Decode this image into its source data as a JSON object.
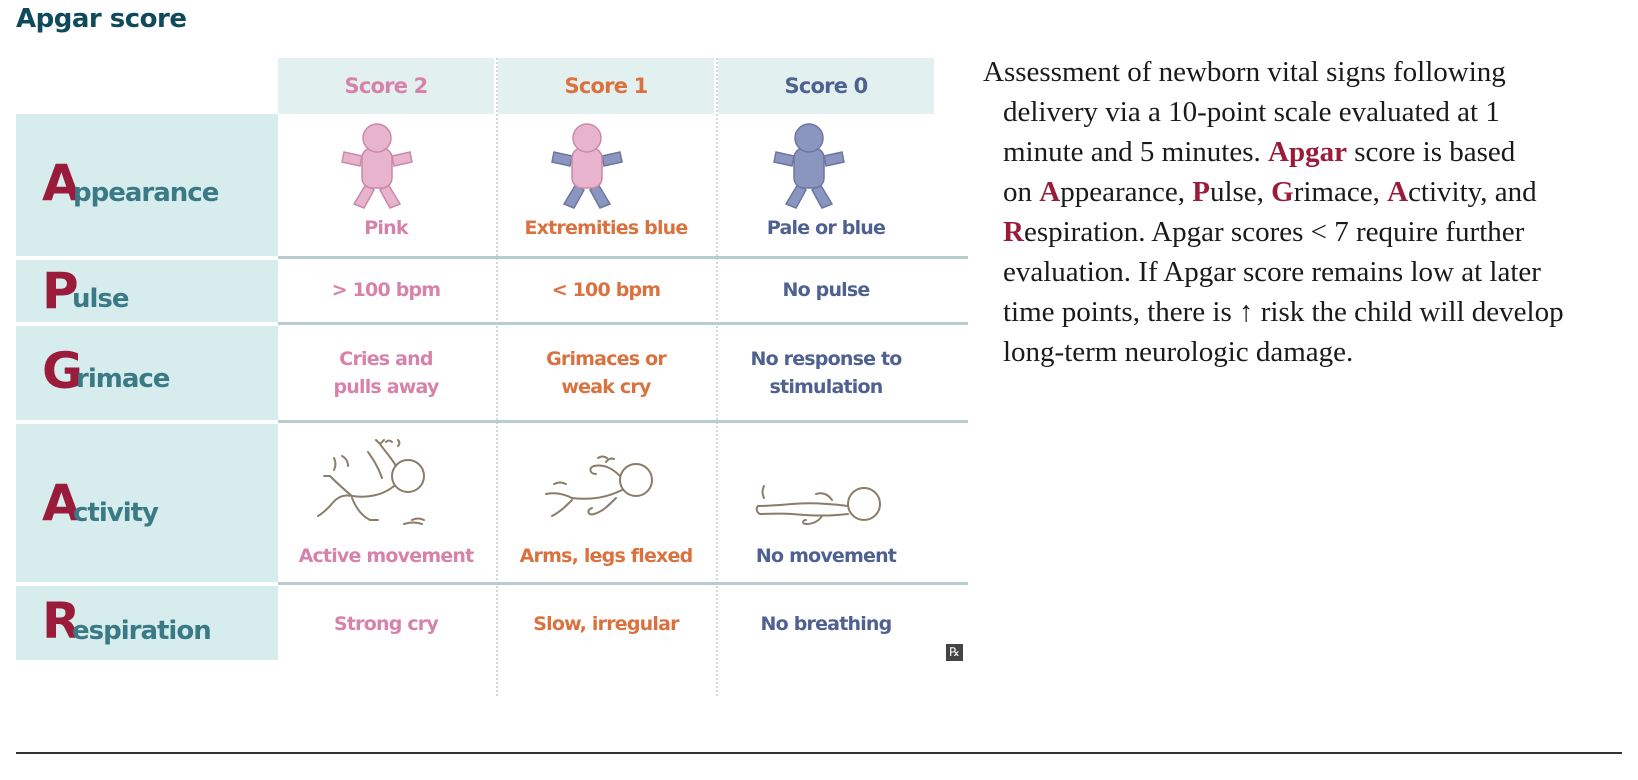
{
  "title": "Apgar score",
  "columns": [
    {
      "label": "Score 2",
      "color": "#d782ab"
    },
    {
      "label": "Score 1",
      "color": "#d9723f"
    },
    {
      "label": "Score 0",
      "color": "#4f6190"
    }
  ],
  "rows": [
    {
      "letter": "A",
      "rest": "ppearance",
      "cells": [
        "Pink",
        "Extremities blue",
        "Pale or blue"
      ]
    },
    {
      "letter": "P",
      "rest": "ulse",
      "cells": [
        "> 100 bpm",
        "< 100 bpm",
        "No pulse"
      ]
    },
    {
      "letter": "G",
      "rest": "rimace",
      "cells": [
        [
          "Cries and",
          "pulls away"
        ],
        [
          "Grimaces or",
          "weak cry"
        ],
        [
          "No response to",
          "stimulation"
        ]
      ]
    },
    {
      "letter": "A",
      "rest": "ctivity",
      "cells": [
        "Active movement",
        "Arms, legs flexed",
        "No movement"
      ]
    },
    {
      "letter": "R",
      "rest": "espiration",
      "cells": [
        "Strong cry",
        "Slow, irregular",
        "No breathing"
      ]
    }
  ],
  "icons": {
    "baby_colors": {
      "score2": {
        "body": "#e8b3cc",
        "limbs": "#e8b3cc"
      },
      "score1": {
        "body": "#e8b3cc",
        "limbs": "#8a96c0"
      },
      "score0": {
        "body": "#8a96c0",
        "limbs": "#8a96c0"
      }
    },
    "outline_color": "#8a7d68"
  },
  "watermark": "℞",
  "description": {
    "lines": [
      [
        {
          "t": "Assessment of newborn vital signs following"
        }
      ],
      [
        {
          "t": "delivery via a 10-point scale evaluated at 1"
        }
      ],
      [
        {
          "t": "minute and 5 minutes. "
        },
        {
          "t": "Apgar",
          "hl": true
        },
        {
          "t": " score is based"
        }
      ],
      [
        {
          "t": "on "
        },
        {
          "t": "A",
          "hl": true
        },
        {
          "t": "ppearance, "
        },
        {
          "t": "P",
          "hl": true
        },
        {
          "t": "ulse, "
        },
        {
          "t": "G",
          "hl": true
        },
        {
          "t": "rimace, "
        },
        {
          "t": "A",
          "hl": true
        },
        {
          "t": "ctivity, and"
        }
      ],
      [
        {
          "t": "R",
          "hl": true
        },
        {
          "t": "espiration. Apgar scores < 7 require further"
        }
      ],
      [
        {
          "t": "evaluation. If Apgar score remains low at later"
        }
      ],
      [
        {
          "t": "time points, there is ↑ risk the child will develop"
        }
      ],
      [
        {
          "t": "long-term neurologic damage."
        }
      ]
    ],
    "highlight_color": "#9b1b3a"
  }
}
